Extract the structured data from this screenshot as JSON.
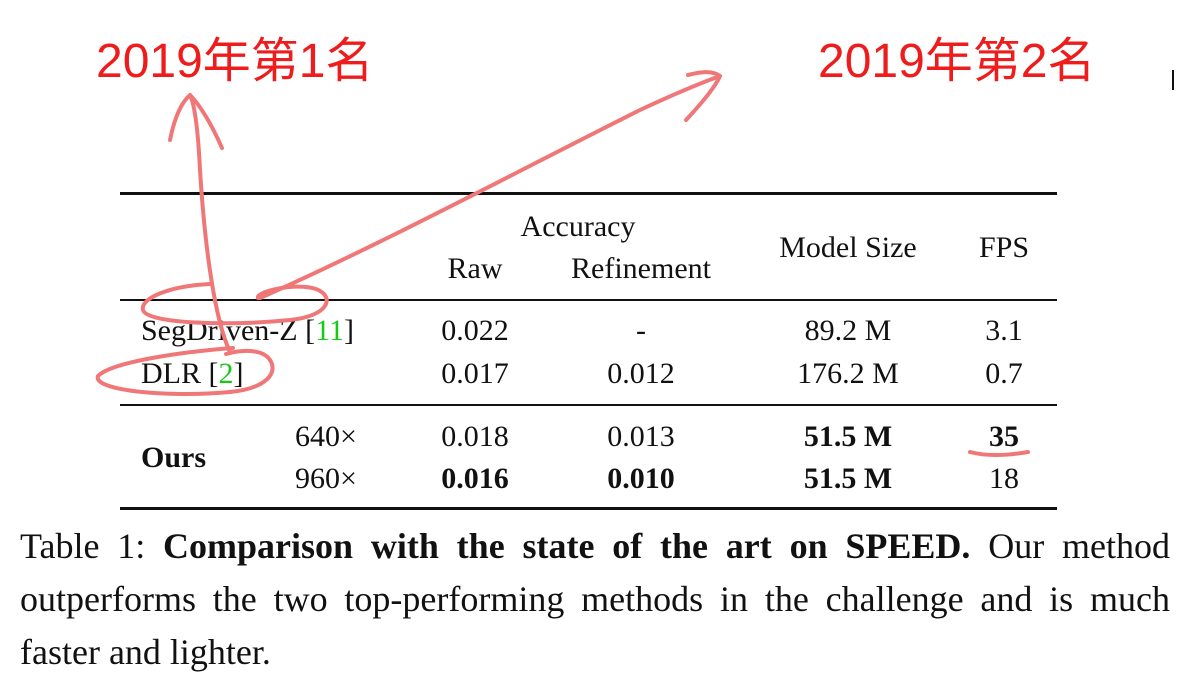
{
  "annotations": {
    "left": "2019年第1名",
    "right": "2019年第2名",
    "color": "#ee1c1c",
    "pen_color": "#f07777"
  },
  "table": {
    "header": {
      "accuracy": "Accuracy",
      "raw": "Raw",
      "refinement": "Refinement",
      "model_size": "Model Size",
      "fps": "FPS"
    },
    "rows": [
      {
        "method": "SegDriven-Z [",
        "ref": "11",
        "ref_close": "]",
        "raw": "0.022",
        "refinement": "-",
        "model_size": "89.2 M",
        "fps": "3.1"
      },
      {
        "method": "DLR [",
        "ref": "2",
        "ref_close": "]",
        "raw": "0.017",
        "refinement": "0.012",
        "model_size": "176.2 M",
        "fps": "0.7"
      }
    ],
    "ours": {
      "label": "Ours",
      "rows": [
        {
          "resolution": "640×",
          "raw": "0.018",
          "refinement": "0.013",
          "model_size": "51.5 M",
          "fps": "35"
        },
        {
          "resolution": "960×",
          "raw": "0.016",
          "refinement": "0.010",
          "model_size": "51.5 M",
          "fps": "18"
        }
      ]
    },
    "ref_color": "#17c917"
  },
  "caption": {
    "label": "Table 1: ",
    "title": "Comparison with the state of the art on SPEED.",
    "body": " Our method outperforms the two top-performing methods in the challenge and is much faster and lighter."
  }
}
